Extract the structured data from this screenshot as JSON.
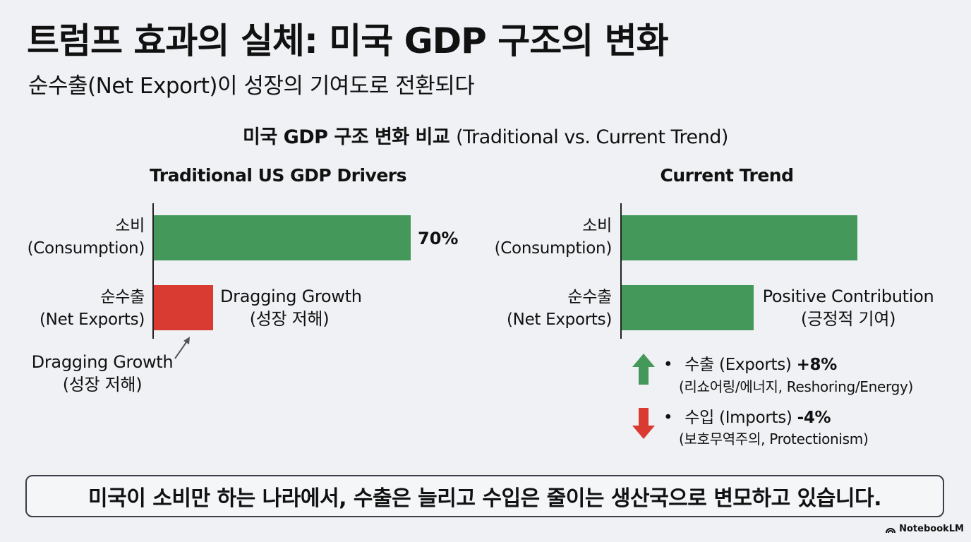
{
  "header": {
    "title": "트럼프 효과의 실체: 미국 GDP 구조의 변화",
    "subtitle": "순수출(Net Export)이 성장의 기여도로 전환되다"
  },
  "chart_title": {
    "korean": "미국 GDP 구조 변화 비교",
    "english": "(Traditional vs. Current Trend)"
  },
  "chart_data": [
    {
      "type": "bar",
      "orientation": "horizontal",
      "title": "Traditional US GDP Drivers",
      "categories": [
        {
          "line1": "소비",
          "line2": "(Consumption)"
        },
        {
          "line1": "순수출",
          "line2": "(Net Exports)"
        }
      ],
      "values": [
        70,
        null
      ],
      "value_labels": [
        "70%",
        ""
      ],
      "bar_colors": [
        "#44985a",
        "#d93a32"
      ],
      "relative_lengths": [
        1.0,
        0.23
      ],
      "annotations": {
        "bar_side": {
          "line1": "Dragging Growth",
          "line2": "(성장 저해)"
        },
        "below": {
          "line1": "Dragging Growth",
          "line2": "(성장 저해)"
        }
      }
    },
    {
      "type": "bar",
      "orientation": "horizontal",
      "title": "Current Trend",
      "categories": [
        {
          "line1": "소비",
          "line2": "(Consumption)"
        },
        {
          "line1": "순수출",
          "line2": "(Net Exports)"
        }
      ],
      "bar_colors": [
        "#44985a",
        "#44985a"
      ],
      "relative_lengths": [
        1.0,
        0.56
      ],
      "annotations": {
        "bar_side": {
          "line1": "Positive Contribution",
          "line2": "(긍정적 기여)"
        }
      },
      "notes": [
        {
          "direction": "up",
          "color": "#44985a",
          "label": "수출 (Exports)",
          "value": "+8%",
          "detail": "(리쇼어링/에너지, Reshoring/Energy)"
        },
        {
          "direction": "down",
          "color": "#d93a32",
          "label": "수입 (Imports)",
          "value": "-4%",
          "detail": "(보호무역주의, Protectionism)"
        }
      ]
    }
  ],
  "banner": {
    "text": "미국이 소비만 하는 나라에서, 수출은 늘리고 수입은 줄이는 생산국으로 변모하고 있습니다."
  },
  "brand": {
    "text": "NotebookLM"
  },
  "bullet": "•"
}
